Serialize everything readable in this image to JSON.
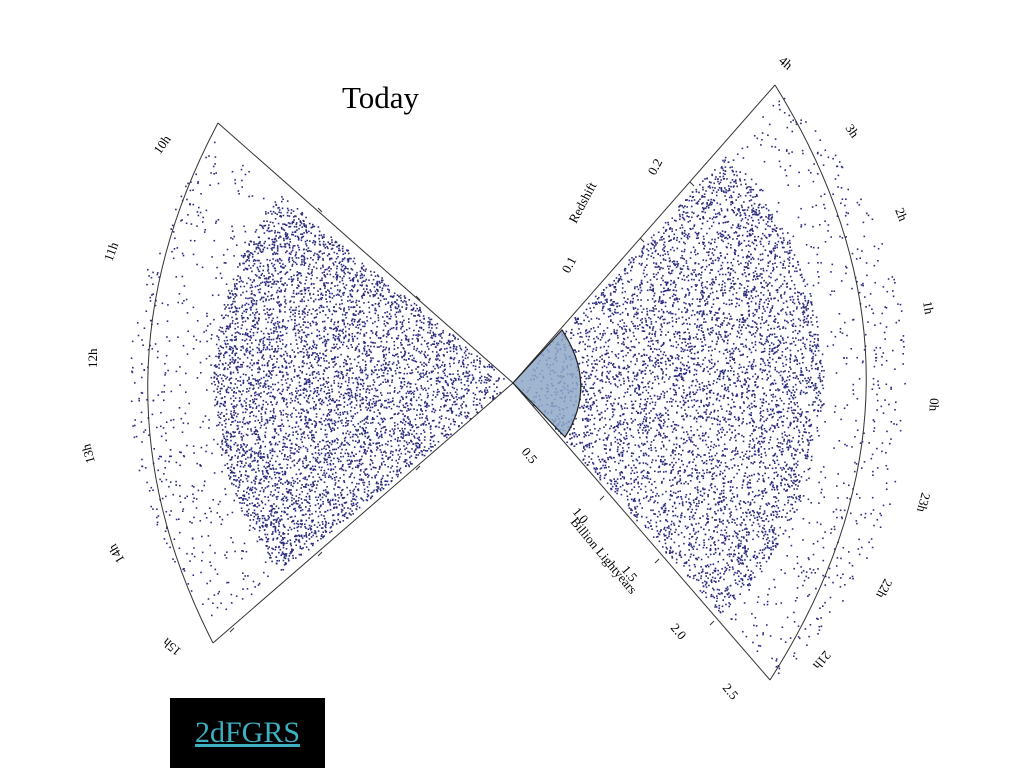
{
  "title": "Today",
  "hour_labels_left": [
    "10h",
    "11h",
    "12h",
    "13h",
    "14h",
    "15h"
  ],
  "hour_labels_right": [
    "4h",
    "3h",
    "2h",
    "1h",
    "0h",
    "23h",
    "22h",
    "21h"
  ],
  "redshift_axis": {
    "label": "Redshift",
    "ticks": [
      "0.1",
      "0.2"
    ]
  },
  "distance_axis": {
    "label": "Billion Lightyears",
    "ticks": [
      "0.5",
      "1.0",
      "1.5",
      "2.0",
      "2.5"
    ]
  },
  "link_text": "2dFGRS",
  "colors": {
    "galaxy": "#2b2b7f",
    "local_region": "#8fa8c8",
    "outline": "#333333",
    "link_bg": "#000000",
    "link_text": "#3cb0c0"
  }
}
